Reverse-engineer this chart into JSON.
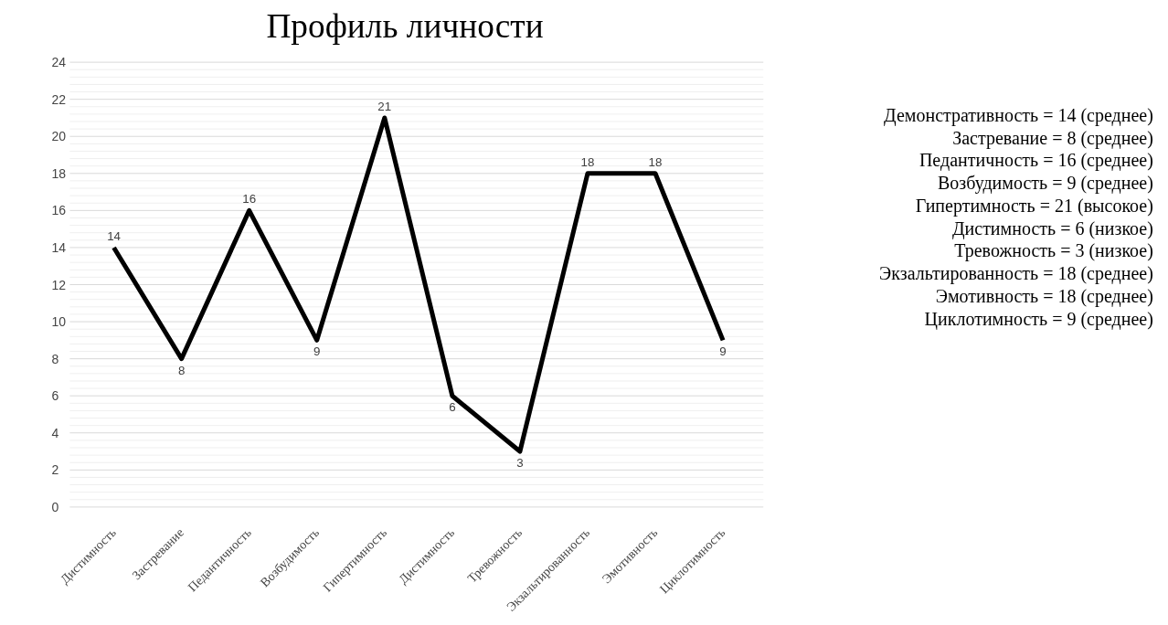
{
  "chart_data": {
    "type": "line",
    "title": "Профиль личности",
    "categories": [
      "Дистимность",
      "Застревание",
      "Педантичность",
      "Возбудимость",
      "Гипертимность",
      "Дистимность",
      "Тревожность",
      "Экзальтированность",
      "Эмотивность",
      "Циклотимность"
    ],
    "series": [
      {
        "color": "#000000",
        "values": [
          14,
          8,
          16,
          9,
          21,
          6,
          3,
          18,
          18,
          9
        ]
      }
    ],
    "ylim": [
      0,
      24
    ],
    "yticks": [
      0,
      2,
      4,
      6,
      8,
      10,
      12,
      14,
      16,
      18,
      20,
      22,
      24
    ],
    "grid": "y",
    "legend": false,
    "marker": "none",
    "line_style": "solid",
    "data_labels": true,
    "annotations": [
      "Демонстративность = 14 (среднее)",
      "Застревание = 8 (среднее)",
      "Педантичность = 16 (среднее)",
      "Возбудимость = 9 (среднее)",
      "Гипертимность = 21 (высокое)",
      "Дистимность = 6 (низкое)",
      "Тревожность = 3 (низкое)",
      "Экзальтированность = 18 (среднее)",
      "Эмотивность = 18 (среднее)",
      "Циклотимность = 9 (среднее)"
    ]
  }
}
